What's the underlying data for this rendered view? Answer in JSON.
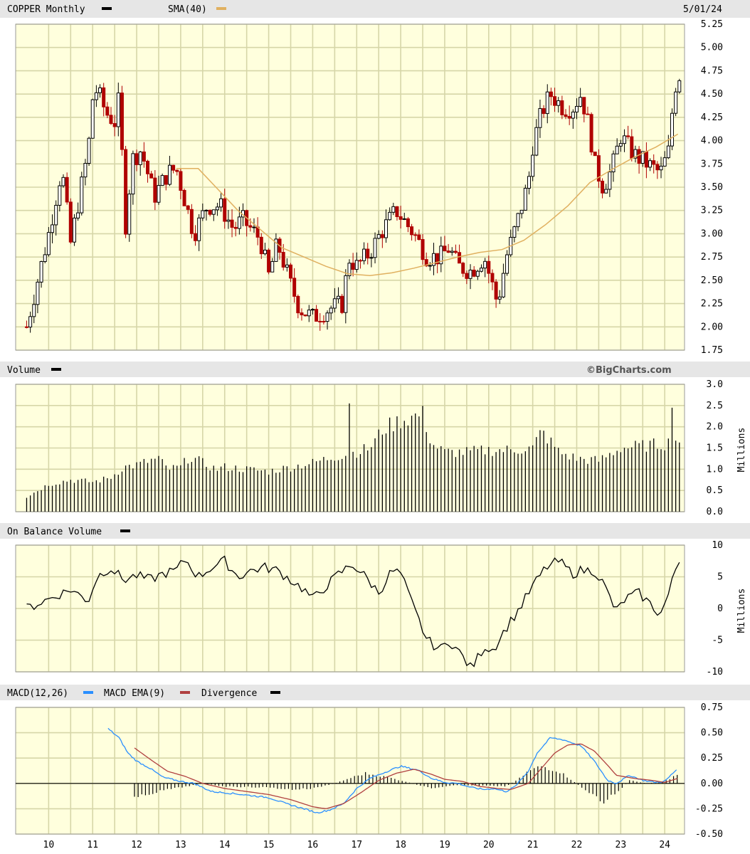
{
  "header": {
    "symbol_label": "COPPER Monthly",
    "sma_label": "SMA(40)",
    "date": "5/01/24"
  },
  "volume_header": {
    "label": "Volume",
    "brand": "©BigCharts.com",
    "unit": "Millions"
  },
  "obv_header": {
    "label": "On Balance Volume",
    "unit": "Millions"
  },
  "macd_header": {
    "macd_label": "MACD(12,26)",
    "ema_label": "MACD EMA(9)",
    "div_label": "Divergence"
  },
  "colors": {
    "plot_bg": "#ffffdd",
    "grid": "#d6d6a8",
    "header_bg": "#e6e6e6",
    "up": "#000000",
    "down": "#b00000",
    "sma": "#e0b060",
    "macd": "#2a8fff",
    "ema": "#b04040",
    "line": "#000000"
  },
  "chart_data": [
    {
      "type": "candlestick",
      "title": "COPPER Monthly",
      "x_ticks": [
        "10",
        "11",
        "12",
        "13",
        "14",
        "15",
        "16",
        "17",
        "18",
        "19",
        "20",
        "21",
        "22",
        "23",
        "24"
      ],
      "y_ticks": [
        "5.25",
        "5.00",
        "4.75",
        "4.50",
        "4.25",
        "4.00",
        "3.75",
        "3.50",
        "3.25",
        "3.00",
        "2.75",
        "2.50",
        "2.25",
        "2.00",
        "1.75"
      ],
      "ylim": [
        1.75,
        5.25
      ],
      "price_anchors": [
        [
          2009.5,
          2.0
        ],
        [
          2010.0,
          3.0
        ],
        [
          2010.3,
          3.7
        ],
        [
          2010.5,
          2.9
        ],
        [
          2010.9,
          3.9
        ],
        [
          2011.0,
          4.45
        ],
        [
          2011.1,
          4.55
        ],
        [
          2011.3,
          4.3
        ],
        [
          2011.5,
          4.2
        ],
        [
          2011.6,
          4.45
        ],
        [
          2011.75,
          3.1
        ],
        [
          2011.9,
          3.8
        ],
        [
          2012.1,
          3.9
        ],
        [
          2012.4,
          3.4
        ],
        [
          2012.7,
          3.65
        ],
        [
          2012.9,
          3.7
        ],
        [
          2013.3,
          3.0
        ],
        [
          2013.6,
          3.3
        ],
        [
          2013.9,
          3.3
        ],
        [
          2014.2,
          3.05
        ],
        [
          2014.4,
          3.15
        ],
        [
          2014.8,
          2.95
        ],
        [
          2015.0,
          2.55
        ],
        [
          2015.2,
          2.9
        ],
        [
          2015.5,
          2.45
        ],
        [
          2015.7,
          2.2
        ],
        [
          2016.0,
          2.1
        ],
        [
          2016.4,
          2.2
        ],
        [
          2016.7,
          2.25
        ],
        [
          2016.8,
          2.75
        ],
        [
          2017.0,
          2.65
        ],
        [
          2017.3,
          2.8
        ],
        [
          2017.6,
          3.05
        ],
        [
          2017.9,
          3.25
        ],
        [
          2018.3,
          3.0
        ],
        [
          2018.6,
          2.75
        ],
        [
          2018.9,
          2.75
        ],
        [
          2019.1,
          2.85
        ],
        [
          2019.3,
          2.65
        ],
        [
          2019.6,
          2.6
        ],
        [
          2019.9,
          2.75
        ],
        [
          2020.2,
          2.25
        ],
        [
          2020.4,
          2.75
        ],
        [
          2020.6,
          3.05
        ],
        [
          2020.9,
          3.55
        ],
        [
          2021.0,
          3.95
        ],
        [
          2021.2,
          4.3
        ],
        [
          2021.4,
          4.5
        ],
        [
          2021.7,
          4.35
        ],
        [
          2021.9,
          4.35
        ],
        [
          2022.1,
          4.5
        ],
        [
          2022.3,
          4.1
        ],
        [
          2022.4,
          3.75
        ],
        [
          2022.6,
          3.5
        ],
        [
          2022.8,
          3.7
        ],
        [
          2023.0,
          4.05
        ],
        [
          2023.3,
          3.85
        ],
        [
          2023.6,
          3.75
        ],
        [
          2023.9,
          3.65
        ],
        [
          2024.1,
          3.9
        ],
        [
          2024.2,
          4.5
        ],
        [
          2024.3,
          4.7
        ]
      ],
      "sma_label": "SMA(40)",
      "sma": [
        [
          2012.9,
          3.7
        ],
        [
          2013.4,
          3.7
        ],
        [
          2013.8,
          3.5
        ],
        [
          2014.3,
          3.25
        ],
        [
          2014.8,
          3.05
        ],
        [
          2015.3,
          2.85
        ],
        [
          2015.8,
          2.75
        ],
        [
          2016.3,
          2.65
        ],
        [
          2016.8,
          2.57
        ],
        [
          2017.3,
          2.55
        ],
        [
          2017.8,
          2.58
        ],
        [
          2018.3,
          2.63
        ],
        [
          2018.8,
          2.69
        ],
        [
          2019.3,
          2.75
        ],
        [
          2019.8,
          2.8
        ],
        [
          2020.3,
          2.83
        ],
        [
          2020.8,
          2.93
        ],
        [
          2021.3,
          3.1
        ],
        [
          2021.8,
          3.3
        ],
        [
          2022.3,
          3.55
        ],
        [
          2022.8,
          3.69
        ],
        [
          2023.3,
          3.82
        ],
        [
          2023.8,
          3.93
        ],
        [
          2024.3,
          4.07
        ]
      ]
    },
    {
      "type": "bar",
      "title": "Volume",
      "ylabel": "Millions",
      "y_ticks": [
        "3.0",
        "2.5",
        "2.0",
        "1.5",
        "1.0",
        "0.5",
        "0.0"
      ],
      "ylim": [
        0,
        3
      ],
      "volume_anchors": [
        [
          2009.5,
          0.35
        ],
        [
          2010.0,
          0.65
        ],
        [
          2010.5,
          0.75
        ],
        [
          2011.0,
          0.7
        ],
        [
          2011.4,
          0.8
        ],
        [
          2011.7,
          1.05
        ],
        [
          2012.0,
          1.1
        ],
        [
          2012.3,
          1.2
        ],
        [
          2012.5,
          1.25
        ],
        [
          2012.7,
          1.0
        ],
        [
          2013.0,
          1.05
        ],
        [
          2013.2,
          1.3
        ],
        [
          2013.5,
          1.15
        ],
        [
          2013.8,
          1.0
        ],
        [
          2014.0,
          1.05
        ],
        [
          2014.5,
          1.0
        ],
        [
          2015.0,
          0.95
        ],
        [
          2015.5,
          1.05
        ],
        [
          2016.0,
          1.15
        ],
        [
          2016.5,
          1.3
        ],
        [
          2016.8,
          1.35
        ],
        [
          2017.3,
          1.5
        ],
        [
          2017.6,
          1.95
        ],
        [
          2018.0,
          2.15
        ],
        [
          2018.5,
          2.3
        ],
        [
          2018.7,
          1.6
        ],
        [
          2019.0,
          1.4
        ],
        [
          2019.5,
          1.4
        ],
        [
          2020.0,
          1.45
        ],
        [
          2020.5,
          1.45
        ],
        [
          2021.0,
          1.5
        ],
        [
          2021.2,
          1.9
        ],
        [
          2021.6,
          1.4
        ],
        [
          2022.0,
          1.25
        ],
        [
          2022.5,
          1.2
        ],
        [
          2023.0,
          1.5
        ],
        [
          2023.5,
          1.55
        ],
        [
          2024.0,
          1.6
        ],
        [
          2024.3,
          1.7
        ]
      ],
      "volume_spikes": [
        [
          2016.8,
          2.55
        ],
        [
          2024.2,
          2.45
        ]
      ]
    },
    {
      "type": "line",
      "title": "On Balance Volume",
      "ylabel": "Millions",
      "y_ticks": [
        "10",
        "5",
        "0",
        "-5",
        "-10"
      ],
      "ylim": [
        -10,
        10
      ],
      "obv": [
        [
          2009.5,
          0
        ],
        [
          2010.0,
          1.5
        ],
        [
          2010.5,
          3
        ],
        [
          2010.9,
          1.2
        ],
        [
          2011.1,
          5
        ],
        [
          2011.4,
          6.5
        ],
        [
          2011.7,
          4.5
        ],
        [
          2012.0,
          5.2
        ],
        [
          2012.3,
          4.5
        ],
        [
          2012.6,
          5.5
        ],
        [
          2012.9,
          6
        ],
        [
          2013.1,
          7.8
        ],
        [
          2013.4,
          5
        ],
        [
          2013.7,
          6.5
        ],
        [
          2014.0,
          7.5
        ],
        [
          2014.3,
          5
        ],
        [
          2014.6,
          6
        ],
        [
          2014.9,
          6.5
        ],
        [
          2015.2,
          6
        ],
        [
          2015.5,
          4.5
        ],
        [
          2015.8,
          3
        ],
        [
          2016.0,
          1.5
        ],
        [
          2016.3,
          3.5
        ],
        [
          2016.6,
          5.5
        ],
        [
          2016.9,
          7
        ],
        [
          2017.2,
          5
        ],
        [
          2017.5,
          2.5
        ],
        [
          2017.8,
          6
        ],
        [
          2018.0,
          5.5
        ],
        [
          2018.3,
          0
        ],
        [
          2018.6,
          -5
        ],
        [
          2018.9,
          -6.5
        ],
        [
          2019.1,
          -5
        ],
        [
          2019.4,
          -7.5
        ],
        [
          2019.6,
          -9.5
        ],
        [
          2019.9,
          -6
        ],
        [
          2020.1,
          -6.5
        ],
        [
          2020.4,
          -3
        ],
        [
          2020.7,
          0
        ],
        [
          2021.0,
          3.5
        ],
        [
          2021.3,
          6.5
        ],
        [
          2021.6,
          7.5
        ],
        [
          2021.9,
          5.5
        ],
        [
          2022.1,
          6
        ],
        [
          2022.4,
          6
        ],
        [
          2022.6,
          4
        ],
        [
          2022.9,
          -0.5
        ],
        [
          2023.1,
          1.5
        ],
        [
          2023.4,
          2.5
        ],
        [
          2023.7,
          0.5
        ],
        [
          2023.9,
          -1
        ],
        [
          2024.1,
          2.5
        ],
        [
          2024.3,
          7.5
        ]
      ]
    },
    {
      "type": "line",
      "title": "MACD(12,26)",
      "y_ticks": [
        "0.75",
        "0.50",
        "0.25",
        "0.00",
        "-0.25",
        "-0.50"
      ],
      "ylim": [
        -0.5,
        0.75
      ],
      "series": [
        {
          "name": "MACD(12,26)",
          "points": [
            [
              2011.35,
              0.54
            ],
            [
              2011.6,
              0.45
            ],
            [
              2011.8,
              0.3
            ],
            [
              2012.0,
              0.22
            ],
            [
              2012.3,
              0.15
            ],
            [
              2012.6,
              0.06
            ],
            [
              2013.0,
              0.02
            ],
            [
              2013.3,
              0.0
            ],
            [
              2013.7,
              -0.08
            ],
            [
              2014.2,
              -0.1
            ],
            [
              2014.6,
              -0.12
            ],
            [
              2015.0,
              -0.14
            ],
            [
              2015.4,
              -0.2
            ],
            [
              2015.8,
              -0.25
            ],
            [
              2016.1,
              -0.29
            ],
            [
              2016.4,
              -0.26
            ],
            [
              2016.7,
              -0.2
            ],
            [
              2017.0,
              -0.05
            ],
            [
              2017.3,
              0.05
            ],
            [
              2017.7,
              0.12
            ],
            [
              2018.0,
              0.17
            ],
            [
              2018.4,
              0.13
            ],
            [
              2018.7,
              0.05
            ],
            [
              2019.0,
              0.01
            ],
            [
              2019.3,
              0.0
            ],
            [
              2019.6,
              -0.04
            ],
            [
              2019.9,
              -0.06
            ],
            [
              2020.1,
              -0.05
            ],
            [
              2020.4,
              -0.08
            ],
            [
              2020.6,
              -0.03
            ],
            [
              2020.9,
              0.12
            ],
            [
              2021.1,
              0.3
            ],
            [
              2021.4,
              0.45
            ],
            [
              2021.7,
              0.43
            ],
            [
              2021.9,
              0.4
            ],
            [
              2022.1,
              0.37
            ],
            [
              2022.4,
              0.22
            ],
            [
              2022.7,
              0.03
            ],
            [
              2022.9,
              0.0
            ],
            [
              2023.2,
              0.08
            ],
            [
              2023.5,
              0.03
            ],
            [
              2023.8,
              0.01
            ],
            [
              2024.0,
              0.02
            ],
            [
              2024.3,
              0.15
            ]
          ]
        },
        {
          "name": "MACD EMA(9)",
          "points": [
            [
              2011.95,
              0.35
            ],
            [
              2012.3,
              0.24
            ],
            [
              2012.7,
              0.12
            ],
            [
              2013.1,
              0.07
            ],
            [
              2013.5,
              0.0
            ],
            [
              2014.0,
              -0.05
            ],
            [
              2014.5,
              -0.08
            ],
            [
              2015.0,
              -0.11
            ],
            [
              2015.5,
              -0.16
            ],
            [
              2016.0,
              -0.23
            ],
            [
              2016.3,
              -0.25
            ],
            [
              2016.7,
              -0.2
            ],
            [
              2017.1,
              -0.09
            ],
            [
              2017.5,
              0.03
            ],
            [
              2017.9,
              0.1
            ],
            [
              2018.3,
              0.14
            ],
            [
              2018.7,
              0.09
            ],
            [
              2019.0,
              0.04
            ],
            [
              2019.4,
              0.02
            ],
            [
              2019.8,
              -0.03
            ],
            [
              2020.2,
              -0.05
            ],
            [
              2020.5,
              -0.06
            ],
            [
              2020.9,
              0.0
            ],
            [
              2021.2,
              0.15
            ],
            [
              2021.5,
              0.3
            ],
            [
              2021.8,
              0.38
            ],
            [
              2022.1,
              0.39
            ],
            [
              2022.4,
              0.32
            ],
            [
              2022.7,
              0.18
            ],
            [
              2022.9,
              0.08
            ],
            [
              2023.3,
              0.05
            ],
            [
              2023.7,
              0.03
            ],
            [
              2024.0,
              0.01
            ],
            [
              2024.3,
              0.05
            ]
          ]
        }
      ],
      "divergence": [
        [
          2011.95,
          -0.15
        ],
        [
          2012.3,
          -0.1
        ],
        [
          2012.7,
          -0.06
        ],
        [
          2013.0,
          -0.04
        ],
        [
          2013.5,
          0.0
        ],
        [
          2014.0,
          -0.03
        ],
        [
          2015.0,
          -0.04
        ],
        [
          2015.5,
          -0.06
        ],
        [
          2016.0,
          -0.05
        ],
        [
          2016.5,
          0.0
        ],
        [
          2016.9,
          0.06
        ],
        [
          2017.2,
          0.1
        ],
        [
          2017.7,
          0.06
        ],
        [
          2018.1,
          0.02
        ],
        [
          2018.4,
          -0.02
        ],
        [
          2018.8,
          -0.05
        ],
        [
          2019.2,
          -0.02
        ],
        [
          2019.6,
          -0.02
        ],
        [
          2020.0,
          -0.02
        ],
        [
          2020.4,
          -0.03
        ],
        [
          2020.7,
          0.05
        ],
        [
          2020.9,
          0.12
        ],
        [
          2021.2,
          0.17
        ],
        [
          2021.6,
          0.12
        ],
        [
          2021.9,
          0.03
        ],
        [
          2022.3,
          -0.1
        ],
        [
          2022.6,
          -0.18
        ],
        [
          2022.9,
          -0.1
        ],
        [
          2023.2,
          0.03
        ],
        [
          2023.6,
          0.0
        ],
        [
          2024.0,
          0.02
        ],
        [
          2024.3,
          0.09
        ]
      ]
    }
  ]
}
